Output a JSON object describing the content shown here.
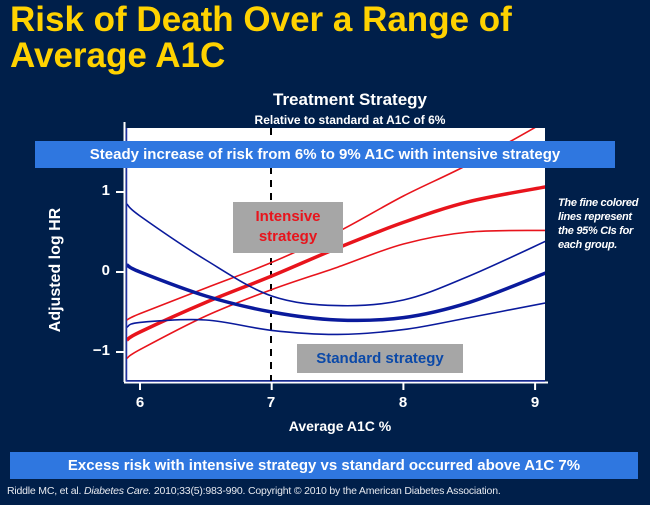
{
  "slide": {
    "title_line1": "Risk of Death Over a Range of",
    "title_line2": "Average A1C",
    "title_color": "#ffd200",
    "background_color": "#001f4a",
    "top_banner": "Steady increase of risk from 6% to 9% A1C with intensive strategy",
    "bottom_banner": "Excess risk with intensive strategy vs standard occurred above A1C 7%",
    "banner_color": "#2f77e0",
    "side_note": "The fine colored lines represent the 95% CIs for each group.",
    "citation": {
      "authors": "Riddle MC, et al.",
      "journal": "Diabetes Care.",
      "details": "2010;33(5):983-990. Copyright © 2010 by the American Diabetes Association."
    }
  },
  "chart_data": {
    "type": "line",
    "title": "Treatment Strategy",
    "subtitle": "Relative to standard at A1C of 6%",
    "xlabel": "Average A1C %",
    "ylabel": "Adjusted log HR",
    "xlim": [
      5.9,
      9.1
    ],
    "ylim": [
      -1.35,
      1.8
    ],
    "x_ticks": [
      "6",
      "7",
      "8",
      "9"
    ],
    "y_ticks": [
      "1",
      "0",
      "−1"
    ],
    "grid": false,
    "reference_line": {
      "x": 7,
      "style": "dashed",
      "color": "#000000"
    },
    "annotations": [
      "Intensive strategy",
      "Standard strategy"
    ],
    "x": [
      5.9,
      6.0,
      6.5,
      7.0,
      7.5,
      8.0,
      8.5,
      9.1
    ],
    "series": [
      {
        "name": "Intensive strategy",
        "color": "#e8141c",
        "style": "thick",
        "values": [
          -0.85,
          -0.75,
          -0.38,
          -0.05,
          0.3,
          0.62,
          0.88,
          1.07
        ]
      },
      {
        "name": "Intensive upper 95% CI",
        "color": "#e8141c",
        "style": "thin",
        "values": [
          -0.6,
          -0.52,
          -0.2,
          0.12,
          0.5,
          0.95,
          1.35,
          1.9
        ]
      },
      {
        "name": "Intensive lower 95% CI",
        "color": "#e8141c",
        "style": "thin",
        "values": [
          -1.08,
          -0.97,
          -0.55,
          -0.22,
          0.06,
          0.35,
          0.5,
          0.52
        ]
      },
      {
        "name": "Standard strategy",
        "color": "#0a1a9c",
        "style": "thick",
        "values": [
          0.09,
          0.0,
          -0.3,
          -0.5,
          -0.6,
          -0.57,
          -0.38,
          0.0
        ]
      },
      {
        "name": "Standard upper 95% CI",
        "color": "#0a1a9c",
        "style": "thin",
        "values": [
          0.85,
          0.7,
          0.15,
          -0.3,
          -0.42,
          -0.35,
          -0.05,
          0.4
        ]
      },
      {
        "name": "Standard lower 95% CI",
        "color": "#0a1a9c",
        "style": "thin",
        "values": [
          -0.69,
          -0.63,
          -0.6,
          -0.73,
          -0.78,
          -0.72,
          -0.57,
          -0.38
        ]
      }
    ]
  }
}
